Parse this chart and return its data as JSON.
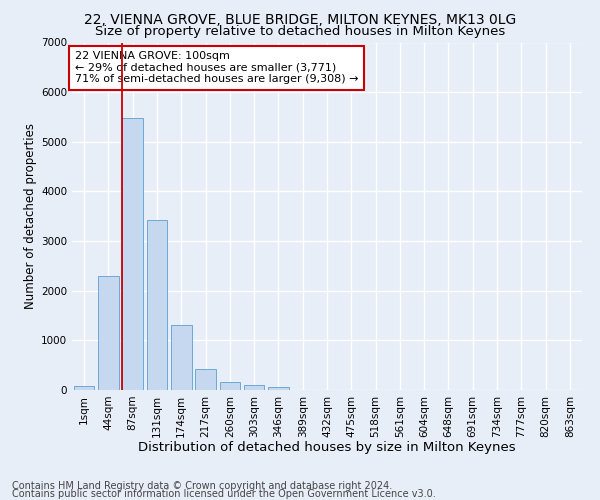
{
  "title_line1": "22, VIENNA GROVE, BLUE BRIDGE, MILTON KEYNES, MK13 0LG",
  "title_line2": "Size of property relative to detached houses in Milton Keynes",
  "xlabel": "Distribution of detached houses by size in Milton Keynes",
  "ylabel": "Number of detached properties",
  "footnote1": "Contains HM Land Registry data © Crown copyright and database right 2024.",
  "footnote2": "Contains public sector information licensed under the Open Government Licence v3.0.",
  "bar_labels": [
    "1sqm",
    "44sqm",
    "87sqm",
    "131sqm",
    "174sqm",
    "217sqm",
    "260sqm",
    "303sqm",
    "346sqm",
    "389sqm",
    "432sqm",
    "475sqm",
    "518sqm",
    "561sqm",
    "604sqm",
    "648sqm",
    "691sqm",
    "734sqm",
    "777sqm",
    "820sqm",
    "863sqm"
  ],
  "bar_values": [
    75,
    2300,
    5480,
    3430,
    1310,
    420,
    160,
    100,
    65,
    0,
    0,
    0,
    0,
    0,
    0,
    0,
    0,
    0,
    0,
    0,
    0
  ],
  "bar_color": "#c5d8f0",
  "bar_edgecolor": "#6aaad4",
  "vline_x_idx": 2,
  "vline_color": "#cc0000",
  "annotation_text": "22 VIENNA GROVE: 100sqm\n← 29% of detached houses are smaller (3,771)\n71% of semi-detached houses are larger (9,308) →",
  "ylim": [
    0,
    7000
  ],
  "yticks": [
    0,
    1000,
    2000,
    3000,
    4000,
    5000,
    6000,
    7000
  ],
  "background_color": "#e8eef8",
  "plot_background": "#e8eef8",
  "grid_color": "#ffffff",
  "title1_fontsize": 10,
  "title2_fontsize": 9.5,
  "xlabel_fontsize": 9.5,
  "ylabel_fontsize": 8.5,
  "tick_fontsize": 7.5,
  "footnote_fontsize": 7,
  "ann_fontsize": 8
}
